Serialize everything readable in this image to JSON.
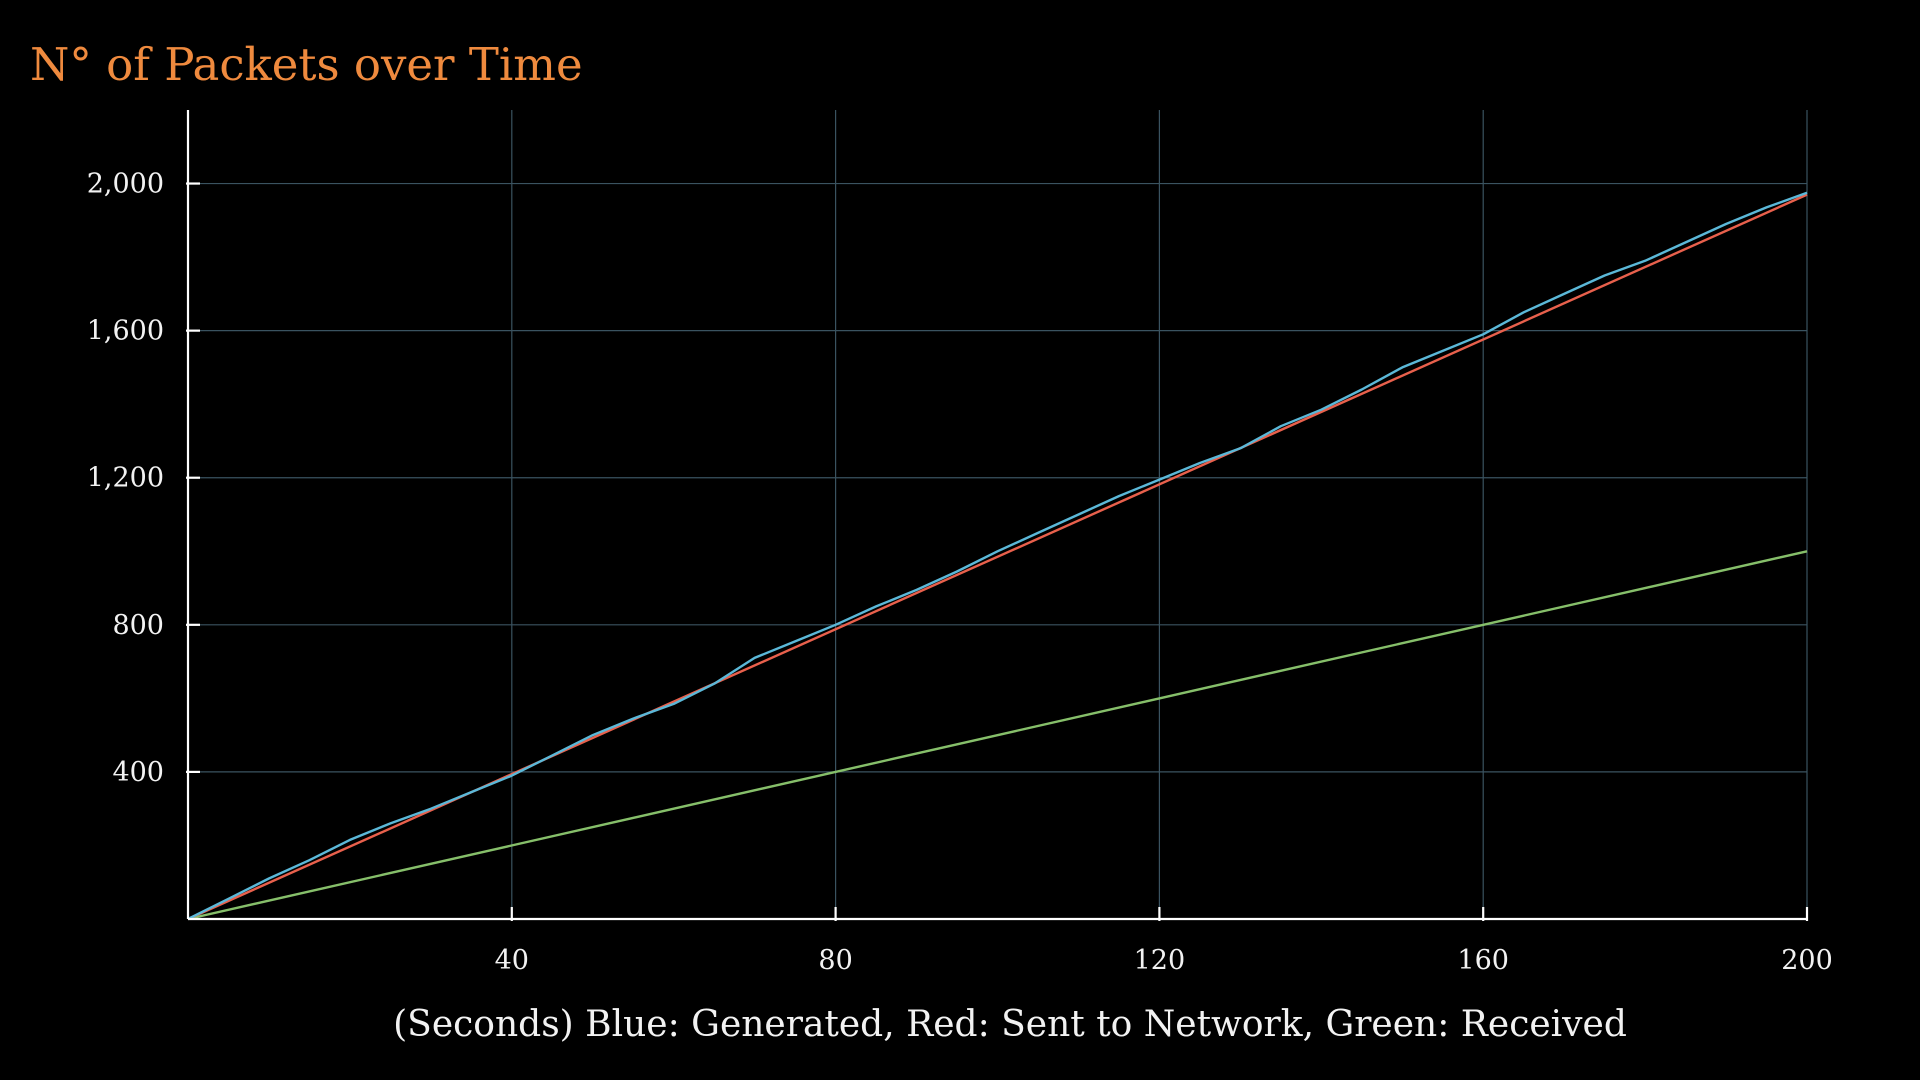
{
  "chart_data": {
    "type": "line",
    "title": "N° of Packets over Time",
    "xlabel": "(Seconds) Blue: Generated, Red: Sent to Network, Green: Received",
    "ylabel": "",
    "xlim": [
      0,
      200
    ],
    "ylim": [
      0,
      2200
    ],
    "x_ticks": [
      {
        "value": 40,
        "label": "40"
      },
      {
        "value": 80,
        "label": "80"
      },
      {
        "value": 120,
        "label": "120"
      },
      {
        "value": 160,
        "label": "160"
      },
      {
        "value": 200,
        "label": "200"
      }
    ],
    "y_ticks": [
      {
        "value": 400,
        "label": "400"
      },
      {
        "value": 800,
        "label": "800"
      },
      {
        "value": 1200,
        "label": "1,200"
      },
      {
        "value": 1600,
        "label": "1,600"
      },
      {
        "value": 2000,
        "label": "2,000"
      }
    ],
    "grid": true,
    "series": [
      {
        "color": "#5bb8d8",
        "x": [
          0,
          5,
          10,
          15,
          20,
          25,
          30,
          35,
          40,
          45,
          50,
          55,
          60,
          65,
          70,
          75,
          80,
          85,
          90,
          95,
          100,
          105,
          110,
          115,
          120,
          125,
          130,
          135,
          140,
          145,
          150,
          155,
          160,
          165,
          170,
          175,
          180,
          185,
          190,
          195,
          200
        ],
        "y": [
          0,
          55,
          110,
          160,
          215,
          260,
          300,
          345,
          390,
          445,
          500,
          545,
          585,
          640,
          710,
          755,
          800,
          850,
          895,
          945,
          1000,
          1050,
          1100,
          1150,
          1195,
          1240,
          1280,
          1340,
          1385,
          1440,
          1500,
          1545,
          1590,
          1650,
          1700,
          1750,
          1790,
          1840,
          1890,
          1935,
          1975
        ]
      },
      {
        "color": "#e8604c",
        "x": [
          0,
          200
        ],
        "y": [
          0,
          1970
        ]
      },
      {
        "color": "#86bf6a",
        "x": [
          0,
          200
        ],
        "y": [
          0,
          1000
        ]
      }
    ]
  }
}
